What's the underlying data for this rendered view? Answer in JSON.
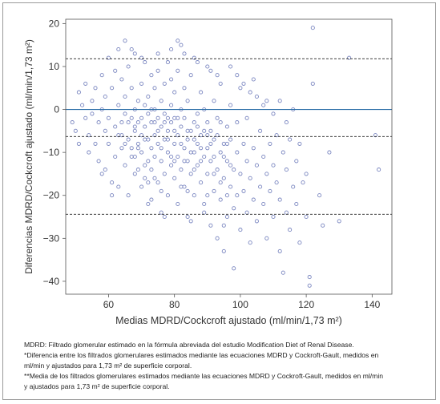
{
  "chart_data": {
    "type": "scatter",
    "xlabel": "Medias MDRD/Cockcroft ajustado (ml/min/1,73 m²)",
    "ylabel": "Diferencias MDRD/Cockcroft ajustado (ml/min/1,73 m²)",
    "xlim": [
      47,
      146
    ],
    "ylim": [
      -43,
      21
    ],
    "xticks": [
      60,
      80,
      100,
      120,
      140
    ],
    "yticks": [
      20,
      10,
      0,
      -10,
      -20,
      -30,
      -40
    ],
    "xtick_labels": [
      "60",
      "80",
      "100",
      "120",
      "140"
    ],
    "ytick_labels": [
      "20",
      "10",
      "0",
      "−10",
      "−20",
      "−30",
      "−40"
    ],
    "mean_line": -6.3,
    "upper_limit": 11.8,
    "lower_limit": -24.4,
    "zero_line": 0,
    "marker_color": "#7a86c0",
    "zero_line_color": "#2d6fa8",
    "limit_line_color": "#222222",
    "series": [
      {
        "points": [
          [
            49,
            -3
          ],
          [
            50,
            -5
          ],
          [
            51,
            4
          ],
          [
            51,
            -8
          ],
          [
            52,
            1
          ],
          [
            53,
            -2
          ],
          [
            53,
            6
          ],
          [
            54,
            -6
          ],
          [
            54,
            -10
          ],
          [
            55,
            2
          ],
          [
            55,
            -1
          ],
          [
            56,
            -8
          ],
          [
            56,
            5
          ],
          [
            57,
            -3
          ],
          [
            57,
            -12
          ],
          [
            58,
            8
          ],
          [
            58,
            0
          ],
          [
            59,
            -5
          ],
          [
            59,
            -14
          ],
          [
            59,
            3
          ],
          [
            60,
            12
          ],
          [
            60,
            -2
          ],
          [
            60,
            -8
          ],
          [
            61,
            5
          ],
          [
            61,
            -17
          ],
          [
            62,
            -4
          ],
          [
            62,
            9
          ],
          [
            62,
            -11
          ],
          [
            63,
            1
          ],
          [
            63,
            -6
          ],
          [
            63,
            14
          ],
          [
            64,
            -3
          ],
          [
            64,
            -9
          ],
          [
            64,
            7
          ],
          [
            65,
            -1
          ],
          [
            65,
            -13
          ],
          [
            65,
            3
          ],
          [
            66,
            -7
          ],
          [
            66,
            10
          ],
          [
            66,
            -20
          ],
          [
            67,
            -2
          ],
          [
            67,
            -11
          ],
          [
            67,
            5
          ],
          [
            68,
            0
          ],
          [
            68,
            -5
          ],
          [
            68,
            -15
          ],
          [
            68,
            13
          ],
          [
            69,
            -8
          ],
          [
            69,
            2
          ],
          [
            69,
            -3
          ],
          [
            70,
            6
          ],
          [
            70,
            -10
          ],
          [
            70,
            -6
          ],
          [
            70,
            -18
          ],
          [
            71,
            1
          ],
          [
            71,
            -4
          ],
          [
            71,
            11
          ],
          [
            71,
            -13
          ],
          [
            72,
            -7
          ],
          [
            72,
            3
          ],
          [
            72,
            -1
          ],
          [
            72,
            -22
          ],
          [
            73,
            8
          ],
          [
            73,
            -9
          ],
          [
            73,
            -3
          ],
          [
            73,
            -14
          ],
          [
            74,
            0
          ],
          [
            74,
            -6
          ],
          [
            74,
            5
          ],
          [
            74,
            -11
          ],
          [
            75,
            -2
          ],
          [
            75,
            -17
          ],
          [
            75,
            9
          ],
          [
            75,
            -8
          ],
          [
            76,
            -4
          ],
          [
            76,
            2
          ],
          [
            76,
            -12
          ],
          [
            76,
            -24
          ],
          [
            77,
            6
          ],
          [
            77,
            -7
          ],
          [
            77,
            -1
          ],
          [
            77,
            -15
          ],
          [
            78,
            -5
          ],
          [
            78,
            11
          ],
          [
            78,
            -10
          ],
          [
            78,
            -20
          ],
          [
            79,
            1
          ],
          [
            79,
            -3
          ],
          [
            79,
            -13
          ],
          [
            79,
            7
          ],
          [
            80,
            -8
          ],
          [
            80,
            -2
          ],
          [
            80,
            -16
          ],
          [
            80,
            4
          ],
          [
            81,
            -6
          ],
          [
            81,
            -11
          ],
          [
            81,
            9
          ],
          [
            81,
            -22
          ],
          [
            82,
            -4
          ],
          [
            82,
            0
          ],
          [
            82,
            -14
          ],
          [
            82,
            15
          ],
          [
            83,
            -9
          ],
          [
            83,
            -2
          ],
          [
            83,
            -18
          ],
          [
            83,
            5
          ],
          [
            84,
            -7
          ],
          [
            84,
            -12
          ],
          [
            84,
            2
          ],
          [
            84,
            -25
          ],
          [
            85,
            -5
          ],
          [
            85,
            -15
          ],
          [
            85,
            8
          ],
          [
            86,
            -10
          ],
          [
            86,
            -3
          ],
          [
            86,
            -20
          ],
          [
            86,
            12
          ],
          [
            87,
            -8
          ],
          [
            87,
            -1
          ],
          [
            87,
            -13
          ],
          [
            88,
            -6
          ],
          [
            88,
            -17
          ],
          [
            88,
            4
          ],
          [
            89,
            -11
          ],
          [
            89,
            -22
          ],
          [
            89,
            0
          ],
          [
            90,
            -9
          ],
          [
            90,
            -3
          ],
          [
            90,
            -15
          ],
          [
            90,
            10
          ],
          [
            91,
            -12
          ],
          [
            91,
            -27
          ],
          [
            91,
            -5
          ],
          [
            92,
            -7
          ],
          [
            92,
            -19
          ],
          [
            92,
            2
          ],
          [
            93,
            -14
          ],
          [
            93,
            -2
          ],
          [
            93,
            -30
          ],
          [
            94,
            -10
          ],
          [
            94,
            -21
          ],
          [
            94,
            6
          ],
          [
            95,
            -8
          ],
          [
            95,
            -16
          ],
          [
            95,
            -33
          ],
          [
            96,
            -12
          ],
          [
            96,
            -4
          ],
          [
            96,
            -25
          ],
          [
            97,
            -18
          ],
          [
            97,
            -7
          ],
          [
            97,
            1
          ],
          [
            98,
            -14
          ],
          [
            98,
            -23
          ],
          [
            98,
            -37
          ],
          [
            99,
            -10
          ],
          [
            99,
            -3
          ],
          [
            99,
            -20
          ],
          [
            100,
            -15
          ],
          [
            100,
            -28
          ],
          [
            100,
            5
          ],
          [
            101,
            -8
          ],
          [
            101,
            -19
          ],
          [
            102,
            -12
          ],
          [
            102,
            -24
          ],
          [
            102,
            -2
          ],
          [
            103,
            -16
          ],
          [
            103,
            -31
          ],
          [
            104,
            -9
          ],
          [
            104,
            -21
          ],
          [
            104,
            7
          ],
          [
            105,
            -13
          ],
          [
            105,
            -26
          ],
          [
            106,
            -5
          ],
          [
            106,
            -18
          ],
          [
            107,
            -11
          ],
          [
            107,
            -22
          ],
          [
            108,
            -15
          ],
          [
            108,
            -30
          ],
          [
            108,
            2
          ],
          [
            109,
            -8
          ],
          [
            109,
            -19
          ],
          [
            110,
            -13
          ],
          [
            110,
            -25
          ],
          [
            111,
            -6
          ],
          [
            111,
            -17
          ],
          [
            112,
            -21
          ],
          [
            112,
            -33
          ],
          [
            113,
            -10
          ],
          [
            113,
            -38
          ],
          [
            114,
            -14
          ],
          [
            114,
            -24
          ],
          [
            115,
            -7
          ],
          [
            115,
            -28
          ],
          [
            116,
            -18
          ],
          [
            116,
            0
          ],
          [
            117,
            -12
          ],
          [
            117,
            -22
          ],
          [
            118,
            -8
          ],
          [
            118,
            -31
          ],
          [
            119,
            -17
          ],
          [
            120,
            -15
          ],
          [
            120,
            -25
          ],
          [
            121,
            -39
          ],
          [
            121,
            -41
          ],
          [
            122,
            19
          ],
          [
            122,
            6
          ],
          [
            124,
            -20
          ],
          [
            125,
            -27
          ],
          [
            127,
            -10
          ],
          [
            130,
            -26
          ],
          [
            133,
            12
          ],
          [
            141,
            -6
          ],
          [
            142,
            -14
          ],
          [
            58,
            -15
          ],
          [
            61,
            -20
          ],
          [
            63,
            -18
          ],
          [
            65,
            16
          ],
          [
            67,
            14
          ],
          [
            70,
            12
          ],
          [
            73,
            -21
          ],
          [
            75,
            13
          ],
          [
            77,
            -25
          ],
          [
            79,
            14
          ],
          [
            81,
            16
          ],
          [
            83,
            13
          ],
          [
            85,
            -26
          ],
          [
            87,
            11
          ],
          [
            89,
            -24
          ],
          [
            91,
            9
          ],
          [
            93,
            8
          ],
          [
            95,
            -27
          ],
          [
            97,
            10
          ],
          [
            99,
            8
          ],
          [
            101,
            6
          ],
          [
            103,
            4
          ],
          [
            105,
            3
          ],
          [
            107,
            1
          ],
          [
            110,
            -1
          ],
          [
            112,
            2
          ],
          [
            114,
            -3
          ],
          [
            68,
            -4
          ],
          [
            69,
            -9
          ],
          [
            70,
            -2
          ],
          [
            71,
            -7
          ],
          [
            72,
            -12
          ],
          [
            73,
            0
          ],
          [
            74,
            -3
          ],
          [
            75,
            -5
          ],
          [
            76,
            -9
          ],
          [
            77,
            -3
          ],
          [
            78,
            -7
          ],
          [
            79,
            -11
          ],
          [
            80,
            -5
          ],
          [
            81,
            -2
          ],
          [
            82,
            -8
          ],
          [
            83,
            -12
          ],
          [
            84,
            -5
          ],
          [
            85,
            -10
          ],
          [
            86,
            -7
          ],
          [
            87,
            -4
          ],
          [
            88,
            -9
          ],
          [
            89,
            -5
          ],
          [
            90,
            -6
          ],
          [
            91,
            -8
          ],
          [
            92,
            -11
          ],
          [
            93,
            -6
          ],
          [
            94,
            -3
          ],
          [
            95,
            -11
          ],
          [
            96,
            -8
          ],
          [
            97,
            -13
          ],
          [
            64,
            -6
          ],
          [
            65,
            -8
          ],
          [
            66,
            -3
          ],
          [
            67,
            -9
          ],
          [
            68,
            -11
          ],
          [
            69,
            -14
          ],
          [
            71,
            -16
          ],
          [
            72,
            -17
          ],
          [
            74,
            -16
          ],
          [
            76,
            -19
          ],
          [
            78,
            -2
          ],
          [
            80,
            -12
          ],
          [
            82,
            -18
          ],
          [
            84,
            -19
          ],
          [
            86,
            -14
          ],
          [
            88,
            -12
          ],
          [
            90,
            -20
          ],
          [
            92,
            -15
          ],
          [
            94,
            -17
          ],
          [
            96,
            -20
          ]
        ]
      }
    ]
  },
  "notes": {
    "line1": "MDRD: Filtrado glomerular estimado en la fórmula abreviada del estudio Modification Diet of Renal Disease.",
    "line2": "*Diferencia entre los filtrados glomerulares estimados mediante las ecuaciones MDRD y Cockroft-Gault, medidos en",
    "line3": "ml/min y ajustados para 1,73 m² de superficie corporal.",
    "line4": "**Media de los filtrados glomerulares estimados mediante las ecuaciones MDRD y Cockroft-Gault, medidos en ml/min",
    "line5": "y ajustados para 1,73 m² de superficie corporal."
  }
}
